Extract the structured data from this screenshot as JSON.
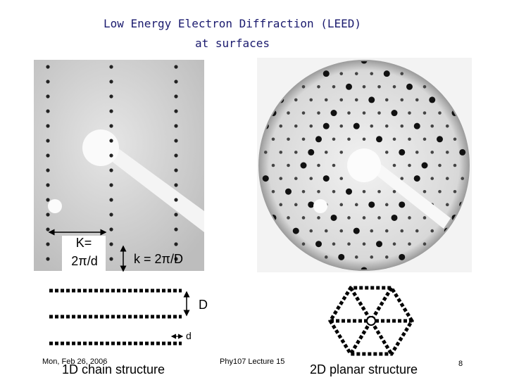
{
  "title": [
    "Low Energy Electron Diffraction (LEED)",
    "at surfaces"
  ],
  "left_pattern": {
    "K_label": "K=",
    "K_value": "2π/d",
    "k_label": "k = 2π/D"
  },
  "chain": {
    "D_label": "D",
    "d_label": "d",
    "caption": "1D chain structure"
  },
  "planar": {
    "caption": "2D planar structure"
  },
  "footer": {
    "date": "Mon, Feb 26, 2006",
    "course": "Phy107 Lecture 15",
    "page": "8"
  }
}
